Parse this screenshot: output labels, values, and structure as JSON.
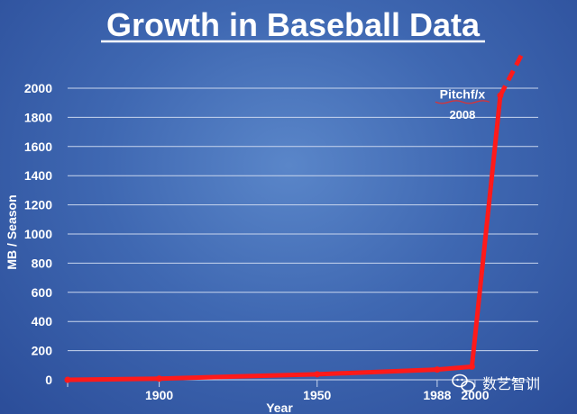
{
  "chart_data": {
    "type": "line",
    "title": "Growth in Baseball Data",
    "xlabel": "Year",
    "ylabel": "MB / Season",
    "xlim": [
      1871,
      2020
    ],
    "ylim": [
      0,
      2000
    ],
    "yticks": [
      0,
      200,
      400,
      600,
      800,
      1000,
      1200,
      1400,
      1600,
      1800,
      2000
    ],
    "xticks": [
      {
        "value": 1900,
        "label": "1900"
      },
      {
        "value": 1950,
        "label": "1950"
      },
      {
        "value": 1988,
        "label": "1988"
      },
      {
        "value": 2000,
        "label": "2000"
      }
    ],
    "grid": true,
    "series": [
      {
        "color": "#ff1a1a",
        "points": [
          {
            "x": 1871,
            "y": 0
          },
          {
            "x": 1900,
            "y": 8
          },
          {
            "x": 1950,
            "y": 38
          },
          {
            "x": 1988,
            "y": 70
          },
          {
            "x": 1999,
            "y": 90
          },
          {
            "x": 2008,
            "y": 1950
          }
        ],
        "projection": [
          {
            "x": 2008,
            "y": 1950
          },
          {
            "x": 2015,
            "y": 2240
          }
        ]
      }
    ],
    "annotations": [
      {
        "text": "Pitchf/x",
        "x": 1996,
        "y": 1930
      },
      {
        "text": "2008",
        "x": 1996,
        "y": 1790
      }
    ]
  },
  "colors": {
    "line": "#ff1a1a",
    "grid": "#c9d6ee",
    "text": "#ffffff",
    "annotation_underline": "#e03030"
  },
  "watermark": {
    "icon": "wechat-icon",
    "text": "数艺智训"
  }
}
